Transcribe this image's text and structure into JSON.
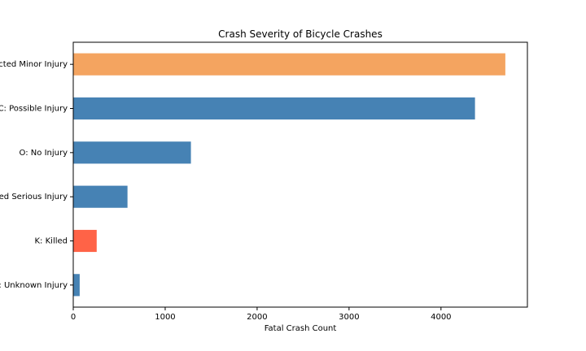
{
  "chart_data": {
    "type": "bar",
    "orientation": "horizontal",
    "title": "Crash Severity of Bicycle Crashes",
    "xlabel": "Fatal Crash Count",
    "ylabel": "",
    "categories": [
      "B: Suspected Minor Injury",
      "C: Possible Injury",
      "O: No Injury",
      "A: Suspected Serious Injury",
      "K: Killed",
      "U: Unknown Injury"
    ],
    "values": [
      4700,
      4370,
      1280,
      590,
      255,
      70
    ],
    "colors": [
      "#f4a460",
      "#4682b4",
      "#4682b4",
      "#4682b4",
      "#ff6347",
      "#4682b4"
    ],
    "xlim": [
      0,
      4940
    ],
    "xticks": [
      0,
      1000,
      2000,
      3000,
      4000
    ],
    "grid": false,
    "legend": "none"
  }
}
